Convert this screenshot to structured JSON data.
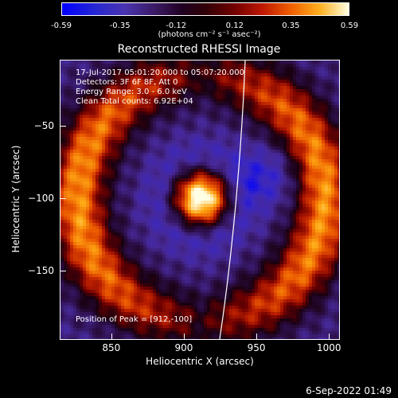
{
  "chart_data": {
    "type": "heatmap",
    "title": "Reconstructed RHESSI Image",
    "xlabel": "Heliocentric X (arcsec)",
    "ylabel": "Heliocentric Y (arcsec)",
    "xlim": [
      815,
      1007
    ],
    "ylim": [
      -197,
      -5
    ],
    "x_ticks": [
      850,
      900,
      950,
      1000
    ],
    "y_ticks": [
      -50,
      -100,
      -150
    ],
    "colorbar": {
      "min": -0.59,
      "max": 0.59,
      "ticks": [
        "-0.59",
        "-0.35",
        "-0.12",
        "0.12",
        "0.35",
        "0.59"
      ],
      "unit": "(photons cm⁻² s⁻¹ asec⁻²)"
    },
    "info_lines": [
      "17-Jul-2017 05:01:20.000 to 05:07:20.000",
      "Detectors: 3F 6F 8F, Att 0",
      "Energy Range: 3.0 - 6.0 keV",
      "Clean     Total counts: 6.92E+04"
    ],
    "peak_text": "Position of Peak = [912,-100]",
    "peak": [
      912,
      -100
    ]
  },
  "timestamp": "6-Sep-2022 01:49"
}
